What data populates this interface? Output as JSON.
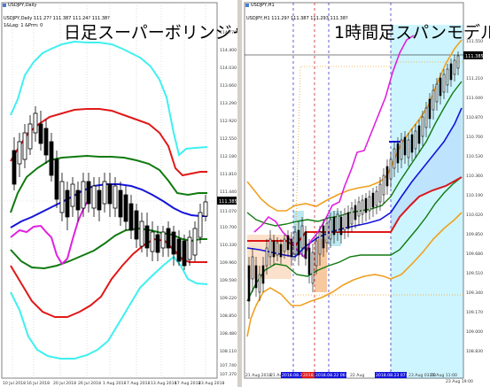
{
  "left": {
    "tab_title": "USDJPY,Daily",
    "info_line": "USDJPY,Daily 111.27? 111.387 111.24? 111.38?",
    "sub_info": "1&Lag: 1 &Prm: 0",
    "overlay_title": "日足スーパーボリンジャー",
    "price_ticks": [
      "114.770",
      "114.400",
      "114.030",
      "113.660",
      "113.290",
      "112.920",
      "112.550",
      "112.180",
      "111.810",
      "111.440",
      "111.070",
      "110.700",
      "110.330",
      "109.960",
      "109.590",
      "109.220",
      "108.850",
      "108.480",
      "108.110",
      "107.740",
      "107.370"
    ],
    "current_price": "111.385",
    "date_ticks": [
      "10 Jul 2018",
      "16 Jul 2018",
      "20 Jul 2018",
      "26 Jul 2018",
      "1 Aug 2018",
      "7 Aug 2018",
      "13 Aug 2018",
      "17 Aug 2018",
      "23 Aug 2018"
    ]
  },
  "right": {
    "tab_title": "USDJPY,H1",
    "info_line": "USDJPY,H1 111.29? 111.387 111.293 111.38?",
    "overlay_title": "1時間足スパンモデル",
    "price_ticks": [
      "111.550",
      "111.385",
      "111.210",
      "111.040",
      "110.870",
      "110.700",
      "110.530",
      "110.360",
      "110.190",
      "110.020",
      "109.850",
      "109.680",
      "109.510",
      "109.340",
      "109.170",
      "109.000",
      "108.830"
    ],
    "current_price": "111.385",
    "date_ticks": [
      "21 Aug 2018",
      "21 Aug",
      "2018.08.21",
      "2018.08.",
      "2018.08.22 06:00",
      "22 Aug",
      "2018.08.23 07:00",
      "23 Aug 03:00",
      "23 Aug 11:00",
      "23 Aug 19:00"
    ]
  },
  "colors": {
    "cyan": "#3ff0f0",
    "red": "#e01818",
    "green": "#107a10",
    "blue": "#1414dc",
    "magenta": "#e020e0",
    "orange": "#f0a020",
    "lightblue": "#cdf5ff",
    "peach": "#f8c8a0",
    "frame": "#808080"
  }
}
